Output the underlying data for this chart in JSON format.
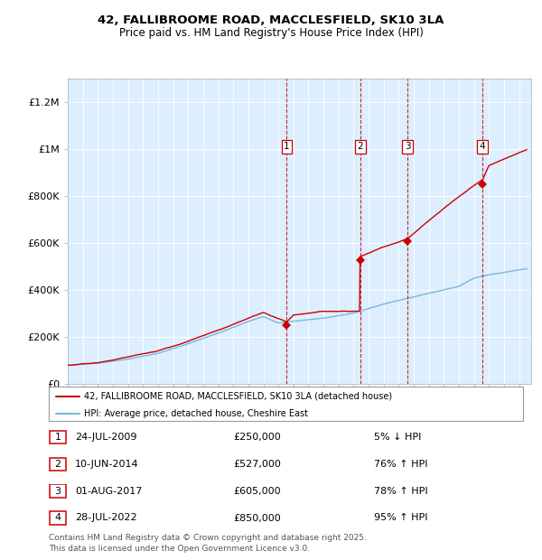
{
  "title1": "42, FALLIBROOME ROAD, MACCLESFIELD, SK10 3LA",
  "title2": "Price paid vs. HM Land Registry's House Price Index (HPI)",
  "ylabel_ticks": [
    "£0",
    "£200K",
    "£400K",
    "£600K",
    "£800K",
    "£1M",
    "£1.2M"
  ],
  "ytick_vals": [
    0,
    200000,
    400000,
    600000,
    800000,
    1000000,
    1200000
  ],
  "ylim": [
    0,
    1300000
  ],
  "xlim_start": 1995.0,
  "xlim_end": 2025.8,
  "hpi_color": "#7ab8d9",
  "price_color": "#cc0000",
  "background_color": "#ddeeff",
  "sale_dates": [
    2009.558,
    2014.442,
    2017.583,
    2022.572
  ],
  "sale_prices": [
    250000,
    527000,
    605000,
    850000
  ],
  "sale_labels": [
    "1",
    "2",
    "3",
    "4"
  ],
  "legend_price_label": "42, FALLIBROOME ROAD, MACCLESFIELD, SK10 3LA (detached house)",
  "legend_hpi_label": "HPI: Average price, detached house, Cheshire East",
  "table_data": [
    [
      "1",
      "24-JUL-2009",
      "£250,000",
      "5% ↓ HPI"
    ],
    [
      "2",
      "10-JUN-2014",
      "£527,000",
      "76% ↑ HPI"
    ],
    [
      "3",
      "01-AUG-2017",
      "£605,000",
      "78% ↑ HPI"
    ],
    [
      "4",
      "28-JUL-2022",
      "£850,000",
      "95% ↑ HPI"
    ]
  ],
  "footer": "Contains HM Land Registry data © Crown copyright and database right 2025.\nThis data is licensed under the Open Government Licence v3.0.",
  "hpi_breakpoints": [
    1995,
    1997,
    1999,
    2001,
    2003,
    2005,
    2007,
    2008,
    2009,
    2010,
    2012,
    2014,
    2016,
    2017,
    2019,
    2021,
    2022,
    2023,
    2025.5
  ],
  "hpi_values": [
    78000,
    88000,
    105000,
    130000,
    170000,
    215000,
    265000,
    285000,
    258000,
    265000,
    278000,
    300000,
    340000,
    355000,
    385000,
    415000,
    450000,
    465000,
    490000
  ],
  "pp_breakpoints": [
    1995,
    1997,
    1999,
    2001,
    2003,
    2005,
    2007,
    2008,
    2009.55,
    2009.56,
    2010,
    2012,
    2014.44,
    2014.45,
    2016,
    2017.58,
    2017.59,
    2019,
    2021,
    2022.57,
    2022.58,
    2023,
    2025.5
  ],
  "pp_values": [
    78000,
    88000,
    108000,
    133000,
    173000,
    218000,
    268000,
    290000,
    250000,
    250000,
    280000,
    295000,
    295000,
    527000,
    570000,
    605000,
    605000,
    680000,
    780000,
    850000,
    850000,
    910000,
    980000
  ]
}
